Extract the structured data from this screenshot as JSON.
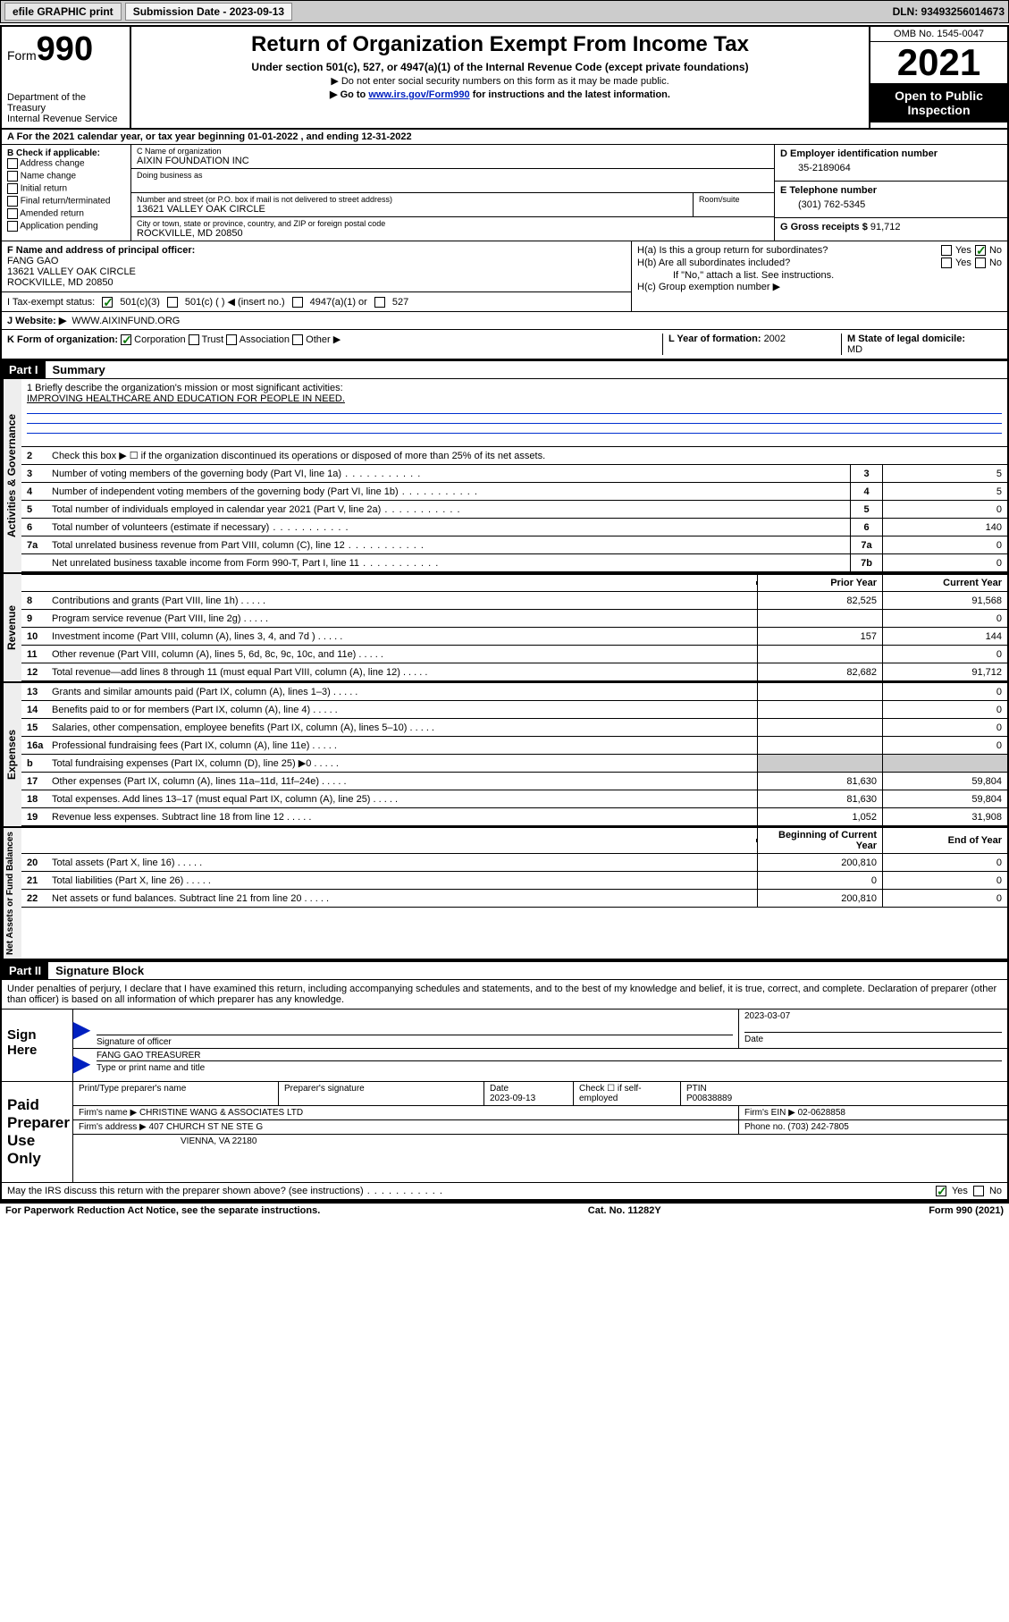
{
  "header_bar": {
    "efile": "efile GRAPHIC print",
    "sub_label": "Submission Date - 2023-09-13",
    "dln": "DLN: 93493256014673"
  },
  "title_block": {
    "form_label": "Form",
    "form_number": "990",
    "dept": "Department of the Treasury",
    "irs": "Internal Revenue Service",
    "main_title": "Return of Organization Exempt From Income Tax",
    "subtitle": "Under section 501(c), 527, or 4947(a)(1) of the Internal Revenue Code (except private foundations)",
    "note1": "▶ Do not enter social security numbers on this form as it may be made public.",
    "note2_pre": "▶ Go to ",
    "note2_link": "www.irs.gov/Form990",
    "note2_post": " for instructions and the latest information.",
    "omb": "OMB No. 1545-0047",
    "year": "2021",
    "inspection": "Open to Public Inspection"
  },
  "row_a": "A For the 2021 calendar year, or tax year beginning 01-01-2022   , and ending 12-31-2022",
  "col_b": {
    "heading": "B Check if applicable:",
    "items": [
      "Address change",
      "Name change",
      "Initial return",
      "Final return/terminated",
      "Amended return",
      "Application pending"
    ]
  },
  "col_c": {
    "name_label": "C Name of organization",
    "name": "AIXIN FOUNDATION INC",
    "dba_label": "Doing business as",
    "addr_label": "Number and street (or P.O. box if mail is not delivered to street address)",
    "room_label": "Room/suite",
    "addr": "13621 VALLEY OAK CIRCLE",
    "city_label": "City or town, state or province, country, and ZIP or foreign postal code",
    "city": "ROCKVILLE, MD  20850"
  },
  "col_d": {
    "ein_label": "D Employer identification number",
    "ein": "35-2189064",
    "phone_label": "E Telephone number",
    "phone": "(301) 762-5345",
    "receipts_label": "G Gross receipts $ ",
    "receipts": "91,712"
  },
  "row_f": {
    "label": "F  Name and address of principal officer:",
    "name": "FANG GAO",
    "addr1": "13621 VALLEY OAK CIRCLE",
    "addr2": "ROCKVILLE, MD  20850"
  },
  "row_h": {
    "ha": "H(a)  Is this a group return for subordinates?",
    "hb": "H(b)  Are all subordinates included?",
    "hb_note": "If \"No,\" attach a list. See instructions.",
    "hc": "H(c)  Group exemption number ▶"
  },
  "row_i": {
    "label": "I    Tax-exempt status:",
    "opt1": "501(c)(3)",
    "opt2": "501(c) (   ) ◀ (insert no.)",
    "opt3": "4947(a)(1) or",
    "opt4": "527"
  },
  "row_j": {
    "label": "J    Website: ▶ ",
    "value": "WWW.AIXINFUND.ORG"
  },
  "row_k": "K Form of organization:",
  "row_k_opts": [
    "Corporation",
    "Trust",
    "Association",
    "Other ▶"
  ],
  "row_l": {
    "label": "L Year of formation: ",
    "value": "2002"
  },
  "row_m": {
    "label": "M State of legal domicile:",
    "value": "MD"
  },
  "part1": {
    "header": "Part I",
    "title": "Summary"
  },
  "part2": {
    "header": "Part II",
    "title": "Signature Block"
  },
  "side": {
    "s1": "Activities & Governance",
    "s2": "Revenue",
    "s3": "Expenses",
    "s4": "Net Assets or Fund Balances"
  },
  "mission": {
    "line1_label": "1  Briefly describe the organization's mission or most significant activities:",
    "text": "IMPROVING HEALTHCARE AND EDUCATION FOR PEOPLE IN NEED."
  },
  "gov_lines": [
    {
      "num": "2",
      "desc": "Check this box ▶ ☐  if the organization discontinued its operations or disposed of more than 25% of its net assets.",
      "box": "",
      "val": ""
    },
    {
      "num": "3",
      "desc": "Number of voting members of the governing body (Part VI, line 1a)",
      "box": "3",
      "val": "5"
    },
    {
      "num": "4",
      "desc": "Number of independent voting members of the governing body (Part VI, line 1b)",
      "box": "4",
      "val": "5"
    },
    {
      "num": "5",
      "desc": "Total number of individuals employed in calendar year 2021 (Part V, line 2a)",
      "box": "5",
      "val": "0"
    },
    {
      "num": "6",
      "desc": "Total number of volunteers (estimate if necessary)",
      "box": "6",
      "val": "140"
    },
    {
      "num": "7a",
      "desc": "Total unrelated business revenue from Part VIII, column (C), line 12",
      "box": "7a",
      "val": "0"
    },
    {
      "num": "",
      "desc": "Net unrelated business taxable income from Form 990-T, Part I, line 11",
      "box": "7b",
      "val": "0"
    }
  ],
  "two_col_header": {
    "prior": "Prior Year",
    "current": "Current Year"
  },
  "rev_lines": [
    {
      "num": "8",
      "desc": "Contributions and grants (Part VIII, line 1h)",
      "py": "82,525",
      "cy": "91,568"
    },
    {
      "num": "9",
      "desc": "Program service revenue (Part VIII, line 2g)",
      "py": "",
      "cy": "0"
    },
    {
      "num": "10",
      "desc": "Investment income (Part VIII, column (A), lines 3, 4, and 7d )",
      "py": "157",
      "cy": "144"
    },
    {
      "num": "11",
      "desc": "Other revenue (Part VIII, column (A), lines 5, 6d, 8c, 9c, 10c, and 11e)",
      "py": "",
      "cy": "0"
    },
    {
      "num": "12",
      "desc": "Total revenue—add lines 8 through 11 (must equal Part VIII, column (A), line 12)",
      "py": "82,682",
      "cy": "91,712"
    }
  ],
  "exp_lines": [
    {
      "num": "13",
      "desc": "Grants and similar amounts paid (Part IX, column (A), lines 1–3)",
      "py": "",
      "cy": "0"
    },
    {
      "num": "14",
      "desc": "Benefits paid to or for members (Part IX, column (A), line 4)",
      "py": "",
      "cy": "0"
    },
    {
      "num": "15",
      "desc": "Salaries, other compensation, employee benefits (Part IX, column (A), lines 5–10)",
      "py": "",
      "cy": "0"
    },
    {
      "num": "16a",
      "desc": "Professional fundraising fees (Part IX, column (A), line 11e)",
      "py": "",
      "cy": "0"
    },
    {
      "num": "b",
      "desc": "Total fundraising expenses (Part IX, column (D), line 25) ▶0",
      "py": "SHADE",
      "cy": "SHADE"
    },
    {
      "num": "17",
      "desc": "Other expenses (Part IX, column (A), lines 11a–11d, 11f–24e)",
      "py": "81,630",
      "cy": "59,804"
    },
    {
      "num": "18",
      "desc": "Total expenses. Add lines 13–17 (must equal Part IX, column (A), line 25)",
      "py": "81,630",
      "cy": "59,804"
    },
    {
      "num": "19",
      "desc": "Revenue less expenses. Subtract line 18 from line 12",
      "py": "1,052",
      "cy": "31,908"
    }
  ],
  "na_header": {
    "begin": "Beginning of Current Year",
    "end": "End of Year"
  },
  "na_lines": [
    {
      "num": "20",
      "desc": "Total assets (Part X, line 16)",
      "py": "200,810",
      "cy": "0"
    },
    {
      "num": "21",
      "desc": "Total liabilities (Part X, line 26)",
      "py": "0",
      "cy": "0"
    },
    {
      "num": "22",
      "desc": "Net assets or fund balances. Subtract line 21 from line 20",
      "py": "200,810",
      "cy": "0"
    }
  ],
  "declaration": "Under penalties of perjury, I declare that I have examined this return, including accompanying schedules and statements, and to the best of my knowledge and belief, it is true, correct, and complete. Declaration of preparer (other than officer) is based on all information of which preparer has any knowledge.",
  "sign_here": {
    "label": "Sign Here",
    "sig_label": "Signature of officer",
    "date_label": "Date",
    "date": "2023-03-07",
    "name_label": "Type or print name and title",
    "name": "FANG GAO  TREASURER"
  },
  "paid_prep": {
    "label": "Paid Preparer Use Only",
    "h1": "Print/Type preparer's name",
    "h2": "Preparer's signature",
    "h3": "Date",
    "h3v": "2023-09-13",
    "h4": "Check ☐ if self-employed",
    "h5": "PTIN",
    "h5v": "P00838889",
    "firm_name_label": "Firm's name    ▶ ",
    "firm_name": "CHRISTINE WANG & ASSOCIATES LTD",
    "firm_ein_label": "Firm's EIN ▶ ",
    "firm_ein": "02-0628858",
    "firm_addr_label": "Firm's address ▶ ",
    "firm_addr1": "407 CHURCH ST NE STE G",
    "firm_addr2": "VIENNA, VA  22180",
    "phone_label": "Phone no. ",
    "phone": "(703) 242-7805"
  },
  "discuss": "May the IRS discuss this return with the preparer shown above? (see instructions)",
  "footer": {
    "left": "For Paperwork Reduction Act Notice, see the separate instructions.",
    "mid": "Cat. No. 11282Y",
    "right": "Form 990 (2021)"
  },
  "yes": "Yes",
  "no": "No"
}
